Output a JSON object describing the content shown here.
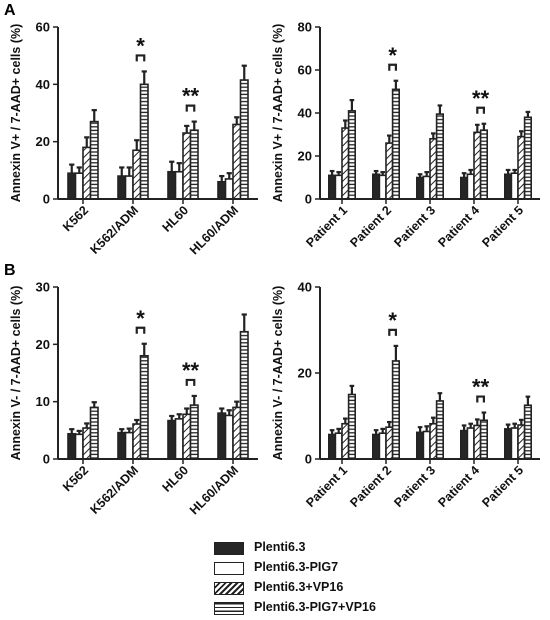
{
  "panel_labels": [
    "A",
    "B"
  ],
  "legend": [
    {
      "label": "Plenti6.3",
      "pattern": "solid"
    },
    {
      "label": "Plenti6.3-PIG7",
      "pattern": "open"
    },
    {
      "label": "Plenti6.3+VP16",
      "pattern": "diagonal"
    },
    {
      "label": "Plenti6.3-PIG7+VP16",
      "pattern": "horizontal"
    }
  ],
  "colors": {
    "bar_dark": "#262626",
    "outline": "#222222",
    "background": "#ffffff"
  },
  "chart_data": [
    {
      "type": "bar",
      "panel": "A",
      "ylabel": "Annexin V+ / 7-AAD+ cells (%)",
      "ylim": [
        0,
        60
      ],
      "yticks": [
        0,
        20,
        40,
        60
      ],
      "categories": [
        "K562",
        "K562/ADM",
        "HL60",
        "HL60/ADM"
      ],
      "series": [
        {
          "name": "Plenti6.3",
          "values": [
            9,
            8,
            9.5,
            6
          ],
          "errors": [
            3,
            3,
            3.5,
            2
          ]
        },
        {
          "name": "Plenti6.3-PIG7",
          "values": [
            9,
            8,
            9.5,
            7
          ],
          "errors": [
            2,
            3,
            3,
            2
          ]
        },
        {
          "name": "Plenti6.3+VP16",
          "values": [
            18,
            17,
            23,
            26
          ],
          "errors": [
            3.5,
            3.5,
            2.5,
            2.5
          ]
        },
        {
          "name": "Plenti6.3-PIG7+VP16",
          "values": [
            27,
            40,
            24,
            41.5
          ],
          "errors": [
            4,
            4.5,
            3,
            5
          ]
        }
      ],
      "annotations": [
        {
          "category": "K562/ADM",
          "text": "*"
        },
        {
          "category": "HL60",
          "text": "**"
        }
      ]
    },
    {
      "type": "bar",
      "panel": "A",
      "ylabel": "Annexin V+ / 7-AAD+ cells (%)",
      "ylim": [
        0,
        80
      ],
      "yticks": [
        0,
        20,
        40,
        60,
        80
      ],
      "categories": [
        "Patient 1",
        "Patient 2",
        "Patient 3",
        "Patient 4",
        "Patient 5"
      ],
      "series": [
        {
          "name": "Plenti6.3",
          "values": [
            11,
            11.5,
            10,
            10,
            11.5
          ],
          "errors": [
            2,
            1.5,
            1.5,
            2,
            2
          ]
        },
        {
          "name": "Plenti6.3-PIG7",
          "values": [
            11,
            11,
            10.5,
            11.5,
            12
          ],
          "errors": [
            1.5,
            1.5,
            2,
            2,
            1.5
          ]
        },
        {
          "name": "Plenti6.3+VP16",
          "values": [
            33,
            26,
            28,
            31,
            29
          ],
          "errors": [
            3.5,
            3.5,
            2.5,
            3.5,
            2.5
          ]
        },
        {
          "name": "Plenti6.3-PIG7+VP16",
          "values": [
            41,
            51,
            39.5,
            32,
            38
          ],
          "errors": [
            5,
            4,
            4,
            3,
            2.5
          ]
        }
      ],
      "annotations": [
        {
          "category": "Patient 2",
          "text": "*"
        },
        {
          "category": "Patient 4",
          "text": "**"
        }
      ]
    },
    {
      "type": "bar",
      "panel": "B",
      "ylabel": "Annexin V- / 7-AAD+ cells (%)",
      "ylim": [
        0,
        30
      ],
      "yticks": [
        0,
        10,
        20,
        30
      ],
      "categories": [
        "K562",
        "K562/ADM",
        "HL60",
        "HL60/ADM"
      ],
      "series": [
        {
          "name": "Plenti6.3",
          "values": [
            4.4,
            4.6,
            6.7,
            8
          ],
          "errors": [
            0.8,
            0.6,
            0.8,
            0.8
          ]
        },
        {
          "name": "Plenti6.3-PIG7",
          "values": [
            4.3,
            4.6,
            7,
            7.6
          ],
          "errors": [
            0.6,
            0.7,
            0.8,
            0.9
          ]
        },
        {
          "name": "Plenti6.3+VP16",
          "values": [
            5.4,
            6.1,
            7.8,
            9
          ],
          "errors": [
            0.8,
            0.7,
            1,
            1
          ]
        },
        {
          "name": "Plenti6.3-PIG7+VP16",
          "values": [
            9,
            18,
            9.4,
            22.2
          ],
          "errors": [
            0.9,
            2.1,
            1.6,
            3
          ]
        }
      ],
      "annotations": [
        {
          "category": "K562/ADM",
          "text": "*"
        },
        {
          "category": "HL60",
          "text": "**"
        }
      ]
    },
    {
      "type": "bar",
      "panel": "B",
      "ylabel": "Annexin V- / 7-AAD+ cells (%)",
      "ylim": [
        0,
        40
      ],
      "yticks": [
        0,
        20,
        40
      ],
      "categories": [
        "Patient 1",
        "Patient 2",
        "Patient 3",
        "Patient 4",
        "Patient 5"
      ],
      "series": [
        {
          "name": "Plenti6.3",
          "values": [
            5.7,
            5.7,
            6.2,
            6.6,
            7
          ],
          "errors": [
            1,
            1,
            1.2,
            1.2,
            1
          ]
        },
        {
          "name": "Plenti6.3-PIG7",
          "values": [
            6,
            6,
            6.4,
            7.2,
            7.2
          ],
          "errors": [
            1,
            1,
            1.2,
            1,
            1
          ]
        },
        {
          "name": "Plenti6.3+VP16",
          "values": [
            8.2,
            7.4,
            8.2,
            7.8,
            7.9
          ],
          "errors": [
            1.2,
            1.2,
            1.4,
            1.4,
            1.2
          ]
        },
        {
          "name": "Plenti6.3-PIG7+VP16",
          "values": [
            15,
            22.8,
            13.5,
            9,
            12.5
          ],
          "errors": [
            2,
            3.5,
            1.8,
            1.8,
            2
          ]
        }
      ],
      "annotations": [
        {
          "category": "Patient 2",
          "text": "*"
        },
        {
          "category": "Patient 4",
          "text": "**"
        }
      ]
    }
  ]
}
